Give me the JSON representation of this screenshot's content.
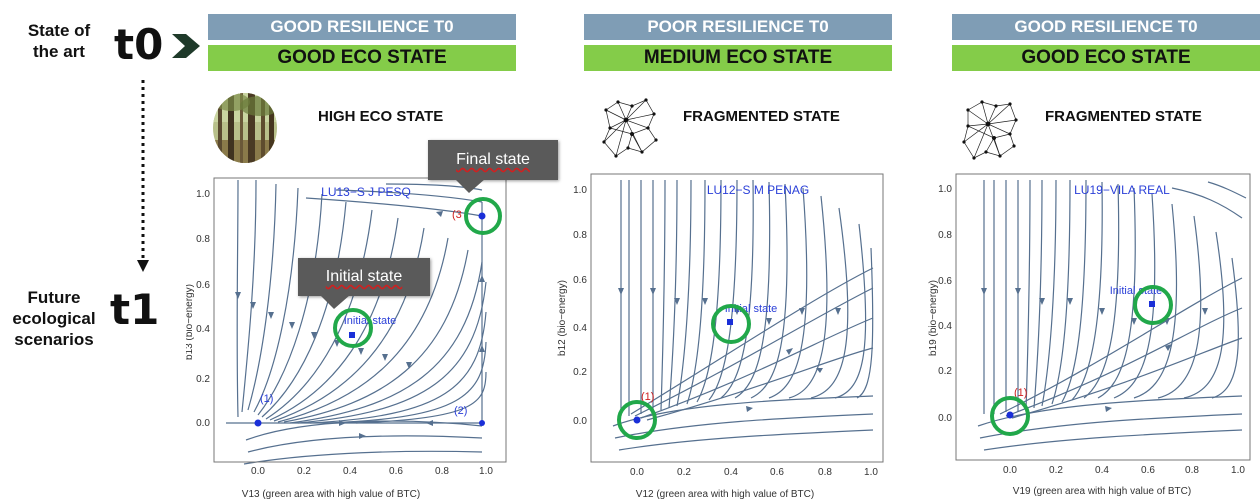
{
  "left": {
    "state_of_art": "State of\nthe art",
    "t0": "t0",
    "future": "Future\necological\nscenarios",
    "t1": "t1"
  },
  "panels": [
    {
      "resilience": "GOOD RESILIENCE T0",
      "eco_state": "GOOD ECO STATE",
      "state_title": "HIGH ECO STATE",
      "icon": "forest-photo-icon",
      "plot_title": "LU13−S J PESQ",
      "ylabel": "b13 (bio−energy)",
      "xlabel": "V13 (green area with high value of BTC)"
    },
    {
      "resilience": "POOR RESILIENCE T0",
      "eco_state": "MEDIUM ECO STATE",
      "state_title": "FRAGMENTED STATE",
      "icon": "network-graph-icon",
      "plot_title": "LU12−S M PENAG",
      "ylabel": "b12 (bio−energy)",
      "xlabel": "V12 (green area with high value of BTC)"
    },
    {
      "resilience": "GOOD RESILIENCE T0",
      "eco_state": "GOOD ECO STATE",
      "state_title": "FRAGMENTED STATE",
      "icon": "network-graph-icon",
      "plot_title": "LU19−VILA REAL",
      "ylabel": "b19 (bio−energy)",
      "xlabel": "V19 (green area with high value of BTC)"
    }
  ],
  "callouts": {
    "final": "Final state",
    "initial": "Initial state"
  },
  "point_labels": {
    "initial": "Initial state",
    "p1": "(1)",
    "p2": "(2)",
    "p3": "(3"
  },
  "ticks": [
    "−0.0",
    "0.0",
    "0.2",
    "0.4",
    "0.6",
    "0.8",
    "1.0"
  ],
  "colors": {
    "band_blue": "#7f9db5",
    "band_green": "#84cc49",
    "stream": "#56708f",
    "label_blue": "#2a3fd8",
    "label_red": "#d02020",
    "ring": "#21a84a"
  }
}
